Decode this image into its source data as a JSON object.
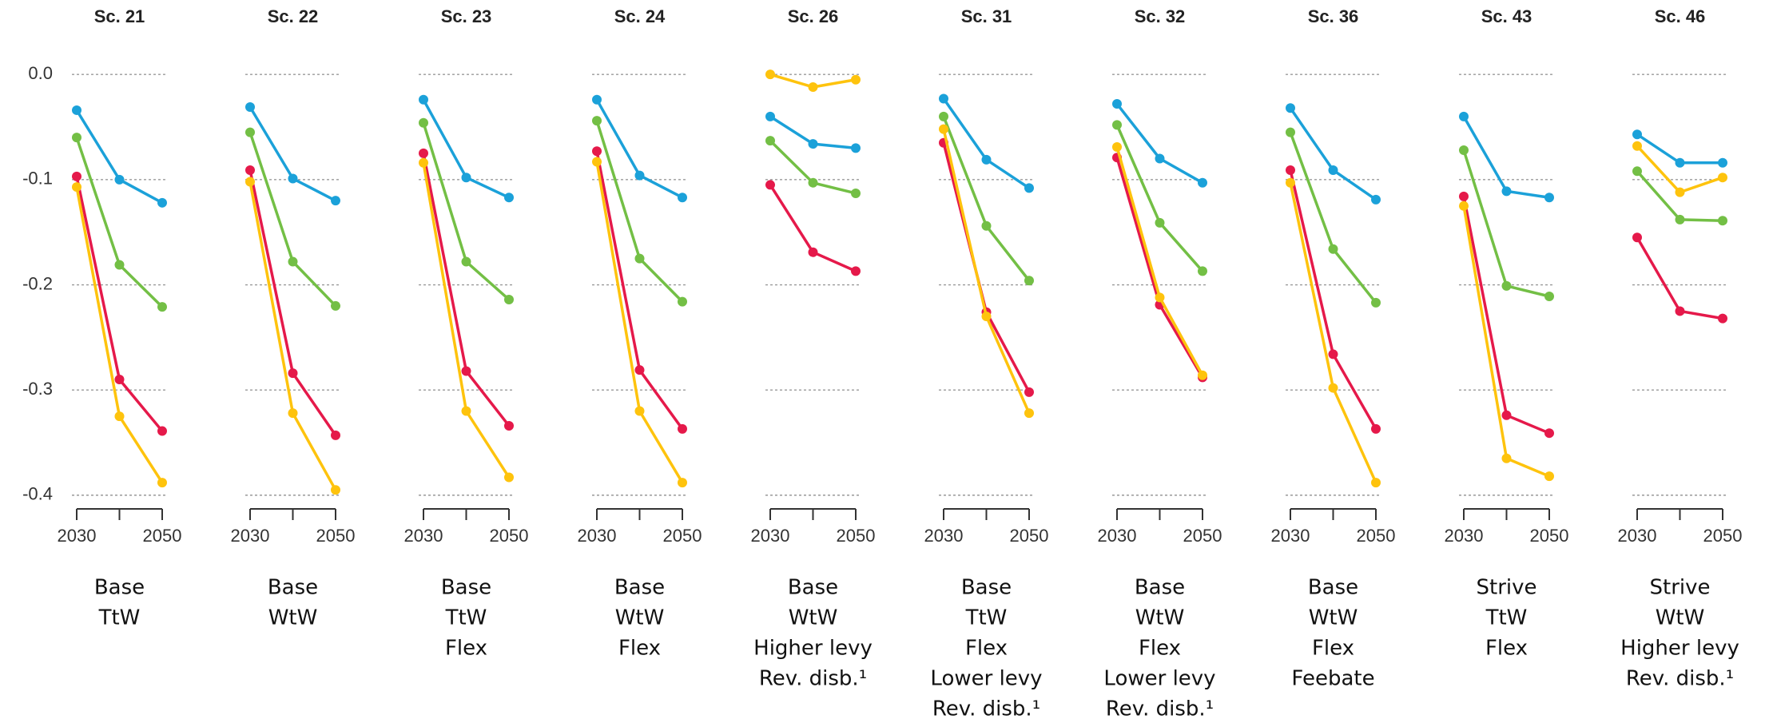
{
  "chart_data": [
    {
      "type": "line",
      "title": "Sc. 21",
      "caption": [
        "Base",
        "TtW"
      ],
      "x": [
        2030,
        2040,
        2050
      ],
      "xticks": [
        2030,
        {
          "value": 2040,
          "label": null
        },
        2050
      ],
      "ylim": [
        -0.413,
        0.01
      ],
      "yticks": [
        {
          "value": 0,
          "label": "0.0"
        },
        -0.1,
        -0.2,
        -0.3,
        -0.4
      ],
      "grid": true,
      "series": [
        {
          "color": "#1ba1d9",
          "values": [
            -0.034,
            -0.1,
            -0.122
          ]
        },
        {
          "color": "#73bf45",
          "values": [
            -0.06,
            -0.181,
            -0.221
          ]
        },
        {
          "color": "#e5194a",
          "values": [
            -0.097,
            -0.29,
            -0.339
          ]
        },
        {
          "color": "#fec30d",
          "values": [
            -0.107,
            -0.325,
            -0.388
          ]
        }
      ]
    },
    {
      "type": "line",
      "title": "Sc. 22",
      "caption": [
        "Base",
        "WtW"
      ],
      "x": [
        2030,
        2040,
        2050
      ],
      "xticks": [
        2030,
        {
          "value": 2040,
          "label": null
        },
        2050
      ],
      "series": [
        {
          "color": "#1ba1d9",
          "values": [
            -0.031,
            -0.099,
            -0.12
          ]
        },
        {
          "color": "#73bf45",
          "values": [
            -0.055,
            -0.178,
            -0.22
          ]
        },
        {
          "color": "#e5194a",
          "values": [
            -0.091,
            -0.284,
            -0.343
          ]
        },
        {
          "color": "#fec30d",
          "values": [
            -0.102,
            -0.322,
            -0.395
          ]
        }
      ]
    },
    {
      "type": "line",
      "title": "Sc. 23",
      "caption": [
        "Base",
        "TtW",
        "Flex"
      ],
      "x": [
        2030,
        2040,
        2050
      ],
      "xticks": [
        2030,
        {
          "value": 2040,
          "label": null
        },
        2050
      ],
      "series": [
        {
          "color": "#1ba1d9",
          "values": [
            -0.024,
            -0.098,
            -0.117
          ]
        },
        {
          "color": "#73bf45",
          "values": [
            -0.046,
            -0.178,
            -0.214
          ]
        },
        {
          "color": "#e5194a",
          "values": [
            -0.075,
            -0.282,
            -0.334
          ]
        },
        {
          "color": "#fec30d",
          "values": [
            -0.084,
            -0.32,
            -0.383
          ]
        }
      ]
    },
    {
      "type": "line",
      "title": "Sc. 24",
      "caption": [
        "Base",
        "WtW",
        "Flex"
      ],
      "x": [
        2030,
        2040,
        2050
      ],
      "xticks": [
        2030,
        {
          "value": 2040,
          "label": null
        },
        2050
      ],
      "series": [
        {
          "color": "#1ba1d9",
          "values": [
            -0.024,
            -0.096,
            -0.117
          ]
        },
        {
          "color": "#73bf45",
          "values": [
            -0.044,
            -0.175,
            -0.216
          ]
        },
        {
          "color": "#e5194a",
          "values": [
            -0.073,
            -0.281,
            -0.337
          ]
        },
        {
          "color": "#fec30d",
          "values": [
            -0.083,
            -0.32,
            -0.388
          ]
        }
      ]
    },
    {
      "type": "line",
      "title": "Sc. 26",
      "caption": [
        "Base",
        "WtW",
        "Higher levy",
        "Rev. disb.¹"
      ],
      "x": [
        2030,
        2040,
        2050
      ],
      "xticks": [
        2030,
        {
          "value": 2040,
          "label": null
        },
        2050
      ],
      "series": [
        {
          "color": "#1ba1d9",
          "values": [
            -0.04,
            -0.066,
            -0.07
          ]
        },
        {
          "color": "#73bf45",
          "values": [
            -0.063,
            -0.103,
            -0.113
          ]
        },
        {
          "color": "#e5194a",
          "values": [
            -0.105,
            -0.169,
            -0.187
          ]
        },
        {
          "color": "#fec30d",
          "values": [
            0.0,
            -0.012,
            -0.005
          ]
        }
      ]
    },
    {
      "type": "line",
      "title": "Sc. 31",
      "caption": [
        "Base",
        "TtW",
        "Flex",
        "Lower levy",
        "Rev. disb.¹"
      ],
      "x": [
        2030,
        2040,
        2050
      ],
      "xticks": [
        2030,
        {
          "value": 2040,
          "label": null
        },
        2050
      ],
      "series": [
        {
          "color": "#1ba1d9",
          "values": [
            -0.023,
            -0.081,
            -0.108
          ]
        },
        {
          "color": "#73bf45",
          "values": [
            -0.04,
            -0.144,
            -0.196
          ]
        },
        {
          "color": "#e5194a",
          "values": [
            -0.065,
            -0.226,
            -0.302
          ]
        },
        {
          "color": "#fec30d",
          "values": [
            -0.052,
            -0.23,
            -0.322
          ]
        }
      ]
    },
    {
      "type": "line",
      "title": "Sc. 32",
      "caption": [
        "Base",
        "WtW",
        "Flex",
        "Lower levy",
        "Rev. disb.¹"
      ],
      "x": [
        2030,
        2040,
        2050
      ],
      "xticks": [
        2030,
        {
          "value": 2040,
          "label": null
        },
        2050
      ],
      "series": [
        {
          "color": "#1ba1d9",
          "values": [
            -0.028,
            -0.08,
            -0.103
          ]
        },
        {
          "color": "#73bf45",
          "values": [
            -0.048,
            -0.141,
            -0.187
          ]
        },
        {
          "color": "#e5194a",
          "values": [
            -0.079,
            -0.219,
            -0.288
          ]
        },
        {
          "color": "#fec30d",
          "values": [
            -0.069,
            -0.212,
            -0.286
          ]
        }
      ]
    },
    {
      "type": "line",
      "title": "Sc. 36",
      "caption": [
        "Base",
        "WtW",
        "Flex",
        "Feebate"
      ],
      "x": [
        2030,
        2040,
        2050
      ],
      "xticks": [
        2030,
        {
          "value": 2040,
          "label": null
        },
        2050
      ],
      "series": [
        {
          "color": "#1ba1d9",
          "values": [
            -0.032,
            -0.091,
            -0.119
          ]
        },
        {
          "color": "#73bf45",
          "values": [
            -0.055,
            -0.166,
            -0.217
          ]
        },
        {
          "color": "#e5194a",
          "values": [
            -0.091,
            -0.266,
            -0.337
          ]
        },
        {
          "color": "#fec30d",
          "values": [
            -0.103,
            -0.298,
            -0.388
          ]
        }
      ]
    },
    {
      "type": "line",
      "title": "Sc. 43",
      "caption": [
        "Strive",
        "TtW",
        "Flex"
      ],
      "x": [
        2030,
        2040,
        2050
      ],
      "xticks": [
        2030,
        {
          "value": 2040,
          "label": null
        },
        2050
      ],
      "series": [
        {
          "color": "#1ba1d9",
          "values": [
            -0.04,
            -0.111,
            -0.117
          ]
        },
        {
          "color": "#73bf45",
          "values": [
            -0.072,
            -0.201,
            -0.211
          ]
        },
        {
          "color": "#e5194a",
          "values": [
            -0.116,
            -0.324,
            -0.341
          ]
        },
        {
          "color": "#fec30d",
          "values": [
            -0.125,
            -0.365,
            -0.382
          ]
        }
      ]
    },
    {
      "type": "line",
      "title": "Sc. 46",
      "caption": [
        "Strive",
        "WtW",
        "Higher levy",
        "Rev. disb.¹"
      ],
      "x": [
        2030,
        2040,
        2050
      ],
      "xticks": [
        2030,
        {
          "value": 2040,
          "label": null
        },
        2050
      ],
      "series": [
        {
          "color": "#1ba1d9",
          "values": [
            -0.057,
            -0.084,
            -0.084
          ]
        },
        {
          "color": "#73bf45",
          "values": [
            -0.092,
            -0.138,
            -0.139
          ]
        },
        {
          "color": "#e5194a",
          "values": [
            -0.155,
            -0.225,
            -0.232
          ]
        },
        {
          "color": "#fec30d",
          "values": [
            -0.068,
            -0.112,
            -0.098
          ]
        }
      ]
    }
  ]
}
